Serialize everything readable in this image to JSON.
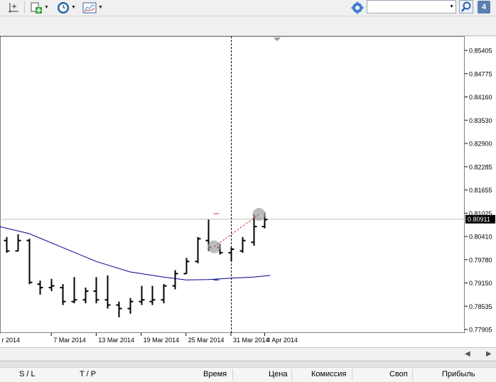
{
  "toolbar": {
    "buttons": [
      {
        "name": "crosshair-tool-button",
        "icon": "crosshair-icon"
      },
      {
        "name": "new-object-button",
        "icon": "add-object-icon"
      },
      {
        "name": "periods-button",
        "icon": "clock-icon"
      },
      {
        "name": "templates-button",
        "icon": "chart-template-icon"
      }
    ],
    "search": {
      "value": "",
      "placeholder": ""
    },
    "notifications_count": "4"
  },
  "chart_data": {
    "type": "ohlc",
    "price_ticks": [
      "0.85405",
      "0.84775",
      "0.84160",
      "0.83530",
      "0.82900",
      "0.82285",
      "0.81655",
      "0.81025",
      "0.80410",
      "0.79780",
      "0.79150",
      "0.78535",
      "0.77905"
    ],
    "current_price": "0.80911",
    "current_price_value": 0.80911,
    "ylim": [
      0.7775,
      0.8575
    ],
    "date_ticks": [
      {
        "label": "r 2014",
        "bar": -0.6
      },
      {
        "label": "7 Mar 2014",
        "bar": 4
      },
      {
        "label": "13 Mar 2014",
        "bar": 8
      },
      {
        "label": "19 Mar 2014",
        "bar": 12
      },
      {
        "label": "25 Mar 2014",
        "bar": 16
      },
      {
        "label": "31 Mar 2014",
        "bar": 20
      },
      {
        "label": "4 Apr 2014",
        "bar": 23
      }
    ],
    "bars": [
      {
        "o": 0.803,
        "h": 0.804,
        "l": 0.7995,
        "c": 0.8
      },
      {
        "o": 0.8,
        "h": 0.8048,
        "l": 0.8,
        "c": 0.803
      },
      {
        "o": 0.803,
        "h": 0.8035,
        "l": 0.7905,
        "c": 0.791
      },
      {
        "o": 0.7905,
        "h": 0.7915,
        "l": 0.7875,
        "c": 0.7895
      },
      {
        "o": 0.7895,
        "h": 0.792,
        "l": 0.7885,
        "c": 0.79
      },
      {
        "o": 0.7895,
        "h": 0.7905,
        "l": 0.7845,
        "c": 0.7855
      },
      {
        "o": 0.7855,
        "h": 0.7925,
        "l": 0.785,
        "c": 0.786
      },
      {
        "o": 0.786,
        "h": 0.7895,
        "l": 0.785,
        "c": 0.7885
      },
      {
        "o": 0.7885,
        "h": 0.7925,
        "l": 0.785,
        "c": 0.786
      },
      {
        "o": 0.786,
        "h": 0.793,
        "l": 0.7835,
        "c": 0.7845
      },
      {
        "o": 0.7845,
        "h": 0.7855,
        "l": 0.781,
        "c": 0.7835
      },
      {
        "o": 0.7835,
        "h": 0.7865,
        "l": 0.782,
        "c": 0.7855
      },
      {
        "o": 0.7855,
        "h": 0.79,
        "l": 0.7845,
        "c": 0.786
      },
      {
        "o": 0.7855,
        "h": 0.79,
        "l": 0.7845,
        "c": 0.786
      },
      {
        "o": 0.786,
        "h": 0.7905,
        "l": 0.785,
        "c": 0.79
      },
      {
        "o": 0.79,
        "h": 0.7945,
        "l": 0.789,
        "c": 0.7935
      },
      {
        "o": 0.7935,
        "h": 0.798,
        "l": 0.7935,
        "c": 0.797
      },
      {
        "o": 0.797,
        "h": 0.804,
        "l": 0.7965,
        "c": 0.8035
      },
      {
        "o": 0.803,
        "h": 0.809,
        "l": 0.8,
        "c": 0.801
      },
      {
        "o": 0.801,
        "h": 0.802,
        "l": 0.799,
        "c": 0.7995
      },
      {
        "o": 0.7995,
        "h": 0.801,
        "l": 0.797,
        "c": 0.8005
      },
      {
        "o": 0.8,
        "h": 0.804,
        "l": 0.7995,
        "c": 0.803
      },
      {
        "o": 0.8025,
        "h": 0.8105,
        "l": 0.8015,
        "c": 0.807
      },
      {
        "o": 0.807,
        "h": 0.811,
        "l": 0.8065,
        "c": 0.809
      }
    ],
    "moving_average": {
      "color": "#00008b",
      "points": [
        {
          "bar": -0.6,
          "value": 0.807
        },
        {
          "bar": 2,
          "value": 0.805
        },
        {
          "bar": 5,
          "value": 0.801
        },
        {
          "bar": 8,
          "value": 0.797
        },
        {
          "bar": 11,
          "value": 0.794
        },
        {
          "bar": 14,
          "value": 0.7925
        },
        {
          "bar": 16,
          "value": 0.7917
        },
        {
          "bar": 18,
          "value": 0.7918
        },
        {
          "bar": 20,
          "value": 0.7922
        },
        {
          "bar": 22,
          "value": 0.7925
        },
        {
          "bar": 23.5,
          "value": 0.793
        }
      ]
    },
    "crosshair_bar": 20,
    "trade_markers": {
      "circle_color": "#a0a0a0",
      "line_color": "#d04040",
      "open": {
        "bar": 18.5,
        "value": 0.8012
      },
      "close": {
        "bar": 22.5,
        "value": 0.8105
      },
      "sl_dash": {
        "bar": 18.7,
        "value": 0.8107
      },
      "tp_dash": {
        "bar": 18.7,
        "value": 0.7917
      }
    },
    "grid": false
  },
  "terminal": {
    "columns": [
      "S / L",
      "T / P",
      "Время",
      "Цена",
      "Комиссия",
      "Своп",
      "Прибыль"
    ]
  }
}
